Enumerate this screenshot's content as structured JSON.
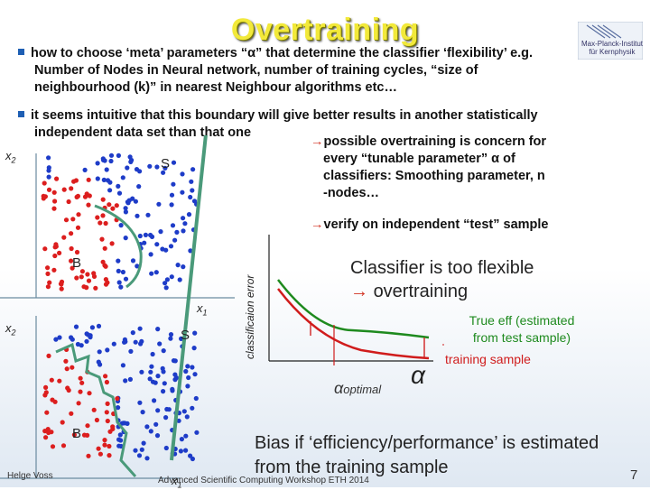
{
  "title": "Overtraining",
  "logo_text": "Max-Planck-Institut für Kernphysik",
  "bullet1": {
    "line1": "how to choose ‘meta’ parameters “α” that determine the classifier ‘flexibility’   e.g.",
    "line2": "Number of Nodes in Neural network,  number of training cycles,  “size of",
    "line3": "neighbourhood (k)” in nearest Neighbour algorithms etc…"
  },
  "bullet2": {
    "line1": "it seems intuitive that this boundary will give better results in another statistically",
    "line2": "independent data set than that one"
  },
  "note1": {
    "line1": "possible overtraining is concern for",
    "line2": "every “tunable parameter”  α  of",
    "line3": "classifiers: Smoothing parameter,   n",
    "line4": "-nodes…"
  },
  "note2": "verify on independent “test” sample",
  "flex_line1": "Classifier is too flexible",
  "flex_line2": "overtraining",
  "true_eff_line1": "True eff (estimated",
  "true_eff_line2": "from test sample)",
  "training_label": "training sample",
  "alpha_symbol": "α",
  "alpha_optimal": "α",
  "alpha_optimal_sub": "optimal",
  "error_axis": "classificaion error",
  "plot_labels": {
    "x1": "x",
    "x1_sub": "1",
    "x2": "x",
    "x2_sub": "2",
    "S": "S",
    "B": "B"
  },
  "bias": "Bias if ‘efficiency/performance’ is estimated from the training sample",
  "footer_left": "Helge Voss",
  "footer_mid": "Advanced Scientific Computing Workshop ETH 2014",
  "page_number": "7",
  "colors": {
    "title": "#f2e93a",
    "signal": "#1e3cc8",
    "background": "#dc1e1e",
    "boundary": "#4a9a7a",
    "true_curve": "#1e8a1e",
    "train_curve": "#d01c1c",
    "arrow": "#d03020"
  }
}
